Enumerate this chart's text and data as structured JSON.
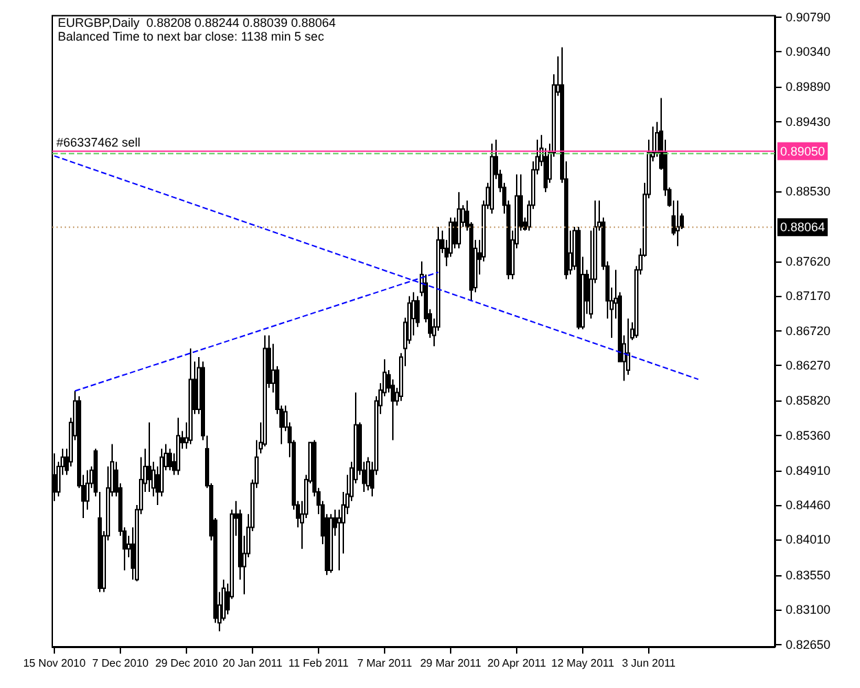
{
  "chart_data": {
    "type": "candlestick",
    "title": "EURGBP,Daily  0.88208 0.88244 0.88039 0.88064",
    "subtitle": "Balanced Time to next bar close: 1138 min 5 sec",
    "categories": [
      "15 Nov 2010",
      null,
      null,
      null,
      null,
      null,
      null,
      null,
      null,
      null,
      null,
      null,
      null,
      null,
      null,
      null,
      "7 Dec 2010",
      null,
      null,
      null,
      null,
      null,
      null,
      null,
      null,
      null,
      null,
      null,
      null,
      null,
      null,
      null,
      "29 Dec 2010",
      null,
      null,
      null,
      null,
      null,
      null,
      null,
      null,
      null,
      null,
      null,
      null,
      null,
      null,
      null,
      "20 Jan 2011",
      null,
      null,
      null,
      null,
      null,
      null,
      null,
      null,
      null,
      null,
      null,
      null,
      null,
      null,
      null,
      "11 Feb 2011",
      null,
      null,
      null,
      null,
      null,
      null,
      null,
      null,
      null,
      null,
      null,
      null,
      null,
      null,
      null,
      "7 Mar 2011",
      null,
      null,
      null,
      null,
      null,
      null,
      null,
      null,
      null,
      null,
      null,
      null,
      null,
      null,
      null,
      "29 Mar 2011",
      null,
      null,
      null,
      null,
      null,
      null,
      null,
      null,
      null,
      null,
      null,
      null,
      null,
      null,
      null,
      "20 Apr 2011",
      null,
      null,
      null,
      null,
      null,
      null,
      null,
      null,
      null,
      null,
      null,
      null,
      null,
      null,
      null,
      "12 May 2011",
      null,
      null,
      null,
      null,
      null,
      null,
      null,
      null,
      null,
      null,
      null,
      null,
      null,
      null,
      null,
      "3 Jun 2011",
      null,
      null,
      null,
      null,
      null,
      null,
      null,
      null,
      null,
      null,
      null,
      null,
      null,
      null,
      null,
      null,
      null,
      null,
      null,
      null,
      null,
      null,
      null,
      null,
      null,
      null,
      null,
      null,
      null,
      null
    ],
    "ohlc": [
      [
        0.8485,
        0.8513,
        0.8451,
        0.8463
      ],
      [
        0.8463,
        0.8502,
        0.8457,
        0.8496
      ],
      [
        0.8496,
        0.8519,
        0.8485,
        0.8508
      ],
      [
        0.8508,
        0.8519,
        0.8485,
        0.8491
      ],
      [
        0.8502,
        0.8559,
        0.8496,
        0.8553
      ],
      [
        0.8536,
        0.8594,
        0.853,
        0.8581
      ],
      [
        0.8581,
        0.8587,
        0.8468,
        0.8471
      ],
      [
        0.8471,
        0.8485,
        0.8429,
        0.8451
      ],
      [
        0.8451,
        0.8491,
        0.844,
        0.8474
      ],
      [
        0.8474,
        0.8496,
        0.8468,
        0.8491
      ],
      [
        0.8516,
        0.8519,
        0.8457,
        0.8463
      ],
      [
        0.8429,
        0.8463,
        0.8333,
        0.8338
      ],
      [
        0.8338,
        0.8412,
        0.8333,
        0.8406
      ],
      [
        0.8406,
        0.8496,
        0.84,
        0.8468
      ],
      [
        0.8463,
        0.8525,
        0.8457,
        0.8502
      ],
      [
        0.8491,
        0.8502,
        0.8457,
        0.8463
      ],
      [
        0.8468,
        0.8474,
        0.8406,
        0.8412
      ],
      [
        0.8412,
        0.8417,
        0.8361,
        0.8389
      ],
      [
        0.8389,
        0.8406,
        0.8378,
        0.8395
      ],
      [
        0.8395,
        0.8417,
        0.8349,
        0.8364
      ],
      [
        0.8349,
        0.8446,
        0.8347,
        0.844
      ],
      [
        0.844,
        0.8508,
        0.8434,
        0.8479
      ],
      [
        0.8474,
        0.8519,
        0.8463,
        0.8496
      ],
      [
        0.8496,
        0.8553,
        0.8463,
        0.8479
      ],
      [
        0.8468,
        0.8502,
        0.8457,
        0.8491
      ],
      [
        0.8485,
        0.8496,
        0.8446,
        0.8463
      ],
      [
        0.8463,
        0.8519,
        0.8457,
        0.8508
      ],
      [
        0.8496,
        0.8525,
        0.8491,
        0.8513
      ],
      [
        0.8513,
        0.8519,
        0.8491,
        0.8496
      ],
      [
        0.8502,
        0.8513,
        0.8485,
        0.8491
      ],
      [
        0.8491,
        0.8559,
        0.8485,
        0.8536
      ],
      [
        0.8533,
        0.8542,
        0.8519,
        0.8527
      ],
      [
        0.8527,
        0.8553,
        0.8519,
        0.8533
      ],
      [
        0.853,
        0.8649,
        0.8525,
        0.8609
      ],
      [
        0.8609,
        0.8632,
        0.8564,
        0.857
      ],
      [
        0.857,
        0.8638,
        0.8564,
        0.8624
      ],
      [
        0.8624,
        0.8632,
        0.853,
        0.8536
      ],
      [
        0.8519,
        0.8536,
        0.8468,
        0.8471
      ],
      [
        0.8471,
        0.8474,
        0.84,
        0.8406
      ],
      [
        0.8426,
        0.8429,
        0.8293,
        0.8299
      ],
      [
        0.8293,
        0.8333,
        0.8282,
        0.8316
      ],
      [
        0.8299,
        0.8349,
        0.8296,
        0.8338
      ],
      [
        0.8333,
        0.8344,
        0.8304,
        0.831
      ],
      [
        0.8327,
        0.844,
        0.8324,
        0.8434
      ],
      [
        0.8434,
        0.8451,
        0.8406,
        0.8429
      ],
      [
        0.8434,
        0.844,
        0.8349,
        0.8366
      ],
      [
        0.8366,
        0.8406,
        0.833,
        0.8383
      ],
      [
        0.8383,
        0.8434,
        0.8378,
        0.8417
      ],
      [
        0.8417,
        0.8479,
        0.8412,
        0.8474
      ],
      [
        0.8474,
        0.853,
        0.8468,
        0.8508
      ],
      [
        0.8519,
        0.8553,
        0.8513,
        0.8527
      ],
      [
        0.8525,
        0.8666,
        0.8522,
        0.8649
      ],
      [
        0.8649,
        0.8666,
        0.8598,
        0.8604
      ],
      [
        0.8604,
        0.8655,
        0.8592,
        0.8621
      ],
      [
        0.8621,
        0.8626,
        0.8564,
        0.857
      ],
      [
        0.857,
        0.8575,
        0.8525,
        0.8547
      ],
      [
        0.8547,
        0.8575,
        0.8542,
        0.8567
      ],
      [
        0.8547,
        0.8553,
        0.8508,
        0.8527
      ],
      [
        0.8527,
        0.853,
        0.844,
        0.8446
      ],
      [
        0.8446,
        0.8451,
        0.8417,
        0.8429
      ],
      [
        0.8423,
        0.8451,
        0.8389,
        0.8434
      ],
      [
        0.8434,
        0.8485,
        0.8429,
        0.8479
      ],
      [
        0.8477,
        0.8527,
        0.8474,
        0.8527
      ],
      [
        0.8527,
        0.853,
        0.8457,
        0.8463
      ],
      [
        0.8463,
        0.8468,
        0.8434,
        0.8446
      ],
      [
        0.8446,
        0.8451,
        0.8395,
        0.8406
      ],
      [
        0.8429,
        0.8434,
        0.8355,
        0.8361
      ],
      [
        0.8361,
        0.8434,
        0.8358,
        0.8429
      ],
      [
        0.8429,
        0.844,
        0.8406,
        0.8417
      ],
      [
        0.8423,
        0.844,
        0.8361,
        0.8429
      ],
      [
        0.8423,
        0.8463,
        0.8383,
        0.8446
      ],
      [
        0.8443,
        0.8485,
        0.8434,
        0.846
      ],
      [
        0.8457,
        0.8502,
        0.8451,
        0.8494
      ],
      [
        0.8479,
        0.8592,
        0.8474,
        0.855
      ],
      [
        0.855,
        0.8553,
        0.8485,
        0.8491
      ],
      [
        0.8491,
        0.8502,
        0.8463,
        0.8474
      ],
      [
        0.8471,
        0.8508,
        0.8465,
        0.8502
      ],
      [
        0.8491,
        0.8502,
        0.8457,
        0.8468
      ],
      [
        0.8491,
        0.8587,
        0.8485,
        0.8581
      ],
      [
        0.8575,
        0.8604,
        0.8564,
        0.8595
      ],
      [
        0.8592,
        0.8635,
        0.8587,
        0.8618
      ],
      [
        0.8615,
        0.8621,
        0.8592,
        0.8598
      ],
      [
        0.8601,
        0.8609,
        0.853,
        0.8581
      ],
      [
        0.8581,
        0.8598,
        0.8575,
        0.8592
      ],
      [
        0.8587,
        0.8643,
        0.8581,
        0.8638
      ],
      [
        0.8649,
        0.8689,
        0.8626,
        0.8683
      ],
      [
        0.866,
        0.8717,
        0.8655,
        0.8708
      ],
      [
        0.8688,
        0.8722,
        0.8666,
        0.8711
      ],
      [
        0.8711,
        0.8717,
        0.8677,
        0.8683
      ],
      [
        0.8722,
        0.8762,
        0.8717,
        0.8745
      ],
      [
        0.8734,
        0.8745,
        0.8683,
        0.8688
      ],
      [
        0.8694,
        0.87,
        0.8663,
        0.8669
      ],
      [
        0.8666,
        0.8688,
        0.8652,
        0.8677
      ],
      [
        0.8677,
        0.8807,
        0.8672,
        0.879
      ],
      [
        0.879,
        0.8802,
        0.8773,
        0.8779
      ],
      [
        0.8779,
        0.879,
        0.8756,
        0.8768
      ],
      [
        0.8773,
        0.8819,
        0.8768,
        0.8813
      ],
      [
        0.8813,
        0.8819,
        0.8779,
        0.8785
      ],
      [
        0.8785,
        0.8852,
        0.8779,
        0.883
      ],
      [
        0.8813,
        0.8835,
        0.8807,
        0.883
      ],
      [
        0.8827,
        0.8841,
        0.8802,
        0.8807
      ],
      [
        0.881,
        0.8813,
        0.8711,
        0.8725
      ],
      [
        0.8728,
        0.879,
        0.8722,
        0.8779
      ],
      [
        0.8773,
        0.879,
        0.8745,
        0.8765
      ],
      [
        0.8768,
        0.8841,
        0.8762,
        0.8835
      ],
      [
        0.8835,
        0.8864,
        0.883,
        0.8858
      ],
      [
        0.883,
        0.8915,
        0.8824,
        0.8898
      ],
      [
        0.8898,
        0.892,
        0.8869,
        0.8875
      ],
      [
        0.8875,
        0.8881,
        0.8852,
        0.8858
      ],
      [
        0.8858,
        0.8864,
        0.8824,
        0.8835
      ],
      [
        0.8835,
        0.8841,
        0.8739,
        0.8745
      ],
      [
        0.8745,
        0.8802,
        0.8739,
        0.879
      ],
      [
        0.8785,
        0.8875,
        0.8779,
        0.8847
      ],
      [
        0.8847,
        0.8875,
        0.8802,
        0.8807
      ],
      [
        0.8813,
        0.8819,
        0.8802,
        0.8804
      ],
      [
        0.8807,
        0.8841,
        0.8802,
        0.8835
      ],
      [
        0.8835,
        0.8892,
        0.883,
        0.8881
      ],
      [
        0.8881,
        0.892,
        0.8875,
        0.8898
      ],
      [
        0.8892,
        0.8926,
        0.8886,
        0.8909
      ],
      [
        0.8898,
        0.8909,
        0.8852,
        0.8858
      ],
      [
        0.8869,
        0.8915,
        0.8864,
        0.8903
      ],
      [
        0.8903,
        0.9005,
        0.8898,
        0.8991
      ],
      [
        0.8982,
        0.9028,
        0.8977,
        0.8991
      ],
      [
        0.8991,
        0.904,
        0.8864,
        0.8869
      ],
      [
        0.8869,
        0.8892,
        0.8739,
        0.8745
      ],
      [
        0.8751,
        0.8802,
        0.8745,
        0.8773
      ],
      [
        0.8756,
        0.8807,
        0.8751,
        0.8802
      ],
      [
        0.8802,
        0.8807,
        0.8674,
        0.8677
      ],
      [
        0.8677,
        0.8768,
        0.8674,
        0.8745
      ],
      [
        0.8745,
        0.8751,
        0.8694,
        0.8711
      ],
      [
        0.8694,
        0.8802,
        0.8688,
        0.8739
      ],
      [
        0.8739,
        0.8841,
        0.8734,
        0.8807
      ],
      [
        0.8807,
        0.8841,
        0.8802,
        0.8813
      ],
      [
        0.8813,
        0.8819,
        0.8751,
        0.8756
      ],
      [
        0.8756,
        0.8762,
        0.8688,
        0.8711
      ],
      [
        0.87,
        0.8728,
        0.8663,
        0.8711
      ],
      [
        0.8708,
        0.8751,
        0.8688,
        0.8714
      ],
      [
        0.8717,
        0.8722,
        0.8632,
        0.8632
      ],
      [
        0.8632,
        0.8666,
        0.8607,
        0.8655
      ],
      [
        0.8621,
        0.8688,
        0.8615,
        0.8643
      ],
      [
        0.8663,
        0.8683,
        0.866,
        0.8674
      ],
      [
        0.8666,
        0.8756,
        0.8663,
        0.8751
      ],
      [
        0.8751,
        0.8779,
        0.8745,
        0.877
      ],
      [
        0.877,
        0.8864,
        0.8768,
        0.8849
      ],
      [
        0.8849,
        0.892,
        0.8844,
        0.8903
      ],
      [
        0.8898,
        0.8937,
        0.8892,
        0.8903
      ],
      [
        0.8903,
        0.8943,
        0.8898,
        0.8929
      ],
      [
        0.8931,
        0.8974,
        0.8881,
        0.8883
      ],
      [
        0.8903,
        0.892,
        0.8847,
        0.8855
      ],
      [
        0.8855,
        0.8858,
        0.8833,
        0.8835
      ],
      [
        0.8821,
        0.8841,
        0.8796,
        0.8799
      ],
      [
        0.8802,
        0.8841,
        0.8782,
        0.8807
      ],
      [
        0.88208,
        0.88244,
        0.88039,
        0.88064
      ],
      null,
      null,
      null,
      null,
      null,
      null,
      null,
      null,
      null,
      null,
      null,
      null,
      null,
      null,
      null,
      null,
      null,
      null,
      null,
      null,
      null,
      null
    ],
    "annotations": [
      {
        "text": "0.89050",
        "y": 0.8905
      },
      {
        "text": "0.88064",
        "y": 0.88064
      }
    ],
    "series": [
      {
        "type": "line",
        "color": "#0000ff",
        "line_style": "dashed",
        "values": [
          0.8899,
          null,
          null,
          null,
          null,
          null,
          null,
          null,
          null,
          null,
          null,
          null,
          null,
          null,
          null,
          null,
          null,
          null,
          null,
          null,
          null,
          null,
          null,
          null,
          null,
          null,
          null,
          null,
          null,
          null,
          null,
          null,
          null,
          null,
          null,
          null,
          null,
          null,
          null,
          null,
          null,
          null,
          null,
          null,
          null,
          null,
          null,
          null,
          null,
          null,
          null,
          null,
          null,
          null,
          null,
          null,
          null,
          null,
          null,
          null,
          null,
          null,
          null,
          null,
          null,
          null,
          null,
          null,
          null,
          null,
          null,
          null,
          null,
          null,
          null,
          null,
          null,
          null,
          null,
          null,
          null,
          null,
          null,
          null,
          null,
          null,
          null,
          null,
          null,
          null,
          null,
          null,
          null,
          null,
          null,
          null,
          null,
          null,
          null,
          null,
          null,
          null,
          null,
          null,
          null,
          null,
          null,
          null,
          null,
          null,
          null,
          null,
          null,
          null,
          null,
          null,
          null,
          null,
          null,
          null,
          null,
          null,
          null,
          null,
          null,
          null,
          null,
          null,
          null,
          null,
          null,
          null,
          null,
          null,
          null,
          null,
          null,
          null,
          null,
          null,
          null,
          null,
          null,
          null,
          null,
          null,
          null,
          null,
          null,
          null,
          null,
          null,
          null,
          null,
          null,
          null,
          0.8609,
          null,
          null,
          null,
          null,
          null,
          null,
          null,
          null,
          null,
          null,
          null,
          null,
          null,
          null,
          null,
          null,
          null,
          null
        ]
      },
      {
        "type": "line",
        "color": "#0000ff",
        "line_style": "dashed",
        "values": [
          null,
          null,
          null,
          null,
          null,
          0.8594,
          null,
          null,
          null,
          null,
          null,
          null,
          null,
          null,
          null,
          null,
          null,
          null,
          null,
          null,
          null,
          null,
          null,
          null,
          null,
          null,
          null,
          null,
          null,
          null,
          null,
          null,
          null,
          null,
          null,
          null,
          null,
          null,
          null,
          null,
          null,
          null,
          null,
          null,
          null,
          null,
          null,
          null,
          null,
          null,
          null,
          null,
          null,
          null,
          null,
          null,
          null,
          null,
          null,
          null,
          null,
          null,
          null,
          null,
          null,
          null,
          null,
          null,
          null,
          null,
          null,
          null,
          null,
          null,
          null,
          null,
          null,
          null,
          null,
          null,
          null,
          null,
          null,
          null,
          null,
          null,
          null,
          null,
          null,
          null,
          null,
          null,
          null,
          0.8748,
          null,
          null,
          null,
          null,
          null,
          null,
          null,
          null,
          null,
          null,
          null,
          null,
          null,
          null,
          null,
          null,
          null,
          null,
          null,
          null,
          null,
          null,
          null,
          null,
          null,
          null,
          null,
          null,
          null,
          null,
          null,
          null,
          null,
          null,
          null,
          null,
          null,
          null,
          null,
          null,
          null,
          null,
          null,
          null,
          null,
          null,
          null,
          null,
          null,
          null,
          null,
          null,
          null,
          null,
          null,
          null,
          null,
          null,
          null,
          null,
          null,
          null,
          null,
          null,
          null,
          null,
          null,
          null,
          null,
          null,
          null,
          null,
          null,
          null,
          null,
          null,
          null,
          null,
          null,
          null,
          null
        ]
      }
    ],
    "ref_lines": [
      {
        "axis": "y",
        "value": 0.8905,
        "label": "#66337462 sell",
        "color": "#ff3399",
        "line_style": "solid"
      },
      {
        "axis": "y",
        "value": 0.8902,
        "label": null,
        "color": "#66cc66",
        "line_style": "dashed"
      },
      {
        "axis": "y",
        "value": 0.88064,
        "label": null,
        "color": "#c8a070",
        "line_style": "dotted"
      }
    ],
    "ylim": [
      0.8262,
      0.9081
    ],
    "yticks": [
      {
        "value": 0.9079,
        "label": "0.90790"
      },
      {
        "value": 0.9034,
        "label": "0.90340"
      },
      {
        "value": 0.8989,
        "label": "0.89890"
      },
      {
        "value": 0.8943,
        "label": "0.89430"
      },
      {
        "value": 0.8853,
        "label": "0.88530"
      },
      {
        "value": 0.8762,
        "label": "0.87620"
      },
      {
        "value": 0.8717,
        "label": "0.87170"
      },
      {
        "value": 0.8672,
        "label": "0.86720"
      },
      {
        "value": 0.8627,
        "label": "0.86270"
      },
      {
        "value": 0.8582,
        "label": "0.85820"
      },
      {
        "value": 0.8536,
        "label": "0.85360"
      },
      {
        "value": 0.8491,
        "label": "0.84910"
      },
      {
        "value": 0.8446,
        "label": "0.84460"
      },
      {
        "value": 0.8401,
        "label": "0.84010"
      },
      {
        "value": 0.8355,
        "label": "0.83550"
      },
      {
        "value": 0.831,
        "label": "0.83100"
      },
      {
        "value": 0.8265,
        "label": "0.82650"
      }
    ]
  }
}
